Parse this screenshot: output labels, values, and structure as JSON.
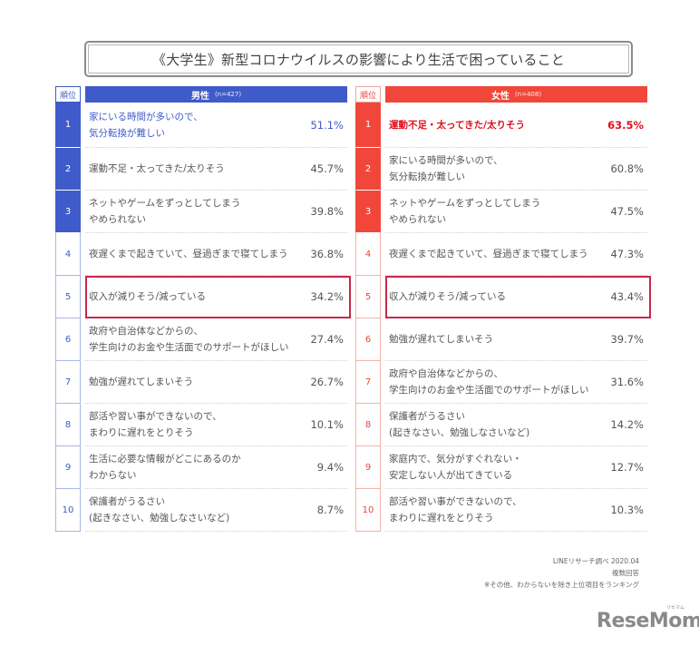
{
  "title": "《大学生》新型コロナウイルスの影響により生活で困っていること",
  "rank_header": "順位",
  "male": {
    "header": "男性",
    "n": "(n=427)",
    "color": "#3f5bc9",
    "rows": [
      {
        "rank": "1",
        "label": "家にいる時間が多いので、\n気分転換が難しい",
        "value": "51.1%"
      },
      {
        "rank": "2",
        "label": "運動不足・太ってきた/太りそう",
        "value": "45.7%"
      },
      {
        "rank": "3",
        "label": "ネットやゲームをずっとしてしまう\nやめられない",
        "value": "39.8%"
      },
      {
        "rank": "4",
        "label": "夜遅くまで起きていて、昼過ぎまで寝てしまう",
        "value": "36.8%"
      },
      {
        "rank": "5",
        "label": "収入が減りそう/減っている",
        "value": "34.2%"
      },
      {
        "rank": "6",
        "label": "政府や自治体などからの、\n学生向けのお金や生活面でのサポートがほしい",
        "value": "27.4%"
      },
      {
        "rank": "7",
        "label": "勉強が遅れてしまいそう",
        "value": "26.7%"
      },
      {
        "rank": "8",
        "label": "部活や習い事ができないので、\nまわりに遅れをとりそう",
        "value": "10.1%"
      },
      {
        "rank": "9",
        "label": "生活に必要な情報がどこにあるのか\nわからない",
        "value": "9.4%"
      },
      {
        "rank": "10",
        "label": "保護者がうるさい\n(起きなさい、勉強しなさいなど)",
        "value": "8.7%"
      }
    ]
  },
  "female": {
    "header": "女性",
    "n": "(n=408)",
    "color": "#f1473a",
    "rows": [
      {
        "rank": "1",
        "label": "運動不足・太ってきた/太りそう",
        "value": "63.5%"
      },
      {
        "rank": "2",
        "label": "家にいる時間が多いので、\n気分転換が難しい",
        "value": "60.8%"
      },
      {
        "rank": "3",
        "label": "ネットやゲームをずっとしてしまう\nやめられない",
        "value": "47.5%"
      },
      {
        "rank": "4",
        "label": "夜遅くまで起きていて、昼過ぎまで寝てしまう",
        "value": "47.3%"
      },
      {
        "rank": "5",
        "label": "収入が減りそう/減っている",
        "value": "43.4%"
      },
      {
        "rank": "6",
        "label": "勉強が遅れてしまいそう",
        "value": "39.7%"
      },
      {
        "rank": "7",
        "label": "政府や自治体などからの、\n学生向けのお金や生活面でのサポートがほしい",
        "value": "31.6%"
      },
      {
        "rank": "8",
        "label": "保護者がうるさい\n(起きなさい、勉強しなさいなど)",
        "value": "14.2%"
      },
      {
        "rank": "9",
        "label": "家庭内で、気分がすぐれない・\n安定しない人が出てきている",
        "value": "12.7%"
      },
      {
        "rank": "10",
        "label": "部活や習い事ができないので、\nまわりに遅れをとりそう",
        "value": "10.3%"
      }
    ]
  },
  "notes": {
    "source": "LINEリサーチ調べ 2020.04",
    "multiple": "複数回答",
    "remark": "※その他、わからないを除き上位項目をランキング"
  },
  "logo": {
    "text": "ReseMom",
    "sub": "リセマム"
  },
  "chart_data": {
    "type": "table",
    "title": "《大学生》新型コロナウイルスの影響により生活で困っていること",
    "columns": [
      "順位",
      "男性 (n=427)",
      "男性 %",
      "女性 (n=408)",
      "女性 %"
    ],
    "series": [
      {
        "name": "男性 (n=427)",
        "categories": [
          "家にいる時間が多いので、気分転換が難しい",
          "運動不足・太ってきた/太りそう",
          "ネットやゲームをずっとしてしまう やめられない",
          "夜遅くまで起きていて、昼過ぎまで寝てしまう",
          "収入が減りそう/減っている",
          "政府や自治体などからの、学生向けのお金や生活面でのサポートがほしい",
          "勉強が遅れてしまいそう",
          "部活や習い事ができないので、まわりに遅れをとりそう",
          "生活に必要な情報がどこにあるのかわからない",
          "保護者がうるさい (起きなさい、勉強しなさいなど)"
        ],
        "values": [
          51.1,
          45.7,
          39.8,
          36.8,
          34.2,
          27.4,
          26.7,
          10.1,
          9.4,
          8.7
        ]
      },
      {
        "name": "女性 (n=408)",
        "categories": [
          "運動不足・太ってきた/太りそう",
          "家にいる時間が多いので、気分転換が難しい",
          "ネットやゲームをずっとしてしまう やめられない",
          "夜遅くまで起きていて、昼過ぎまで寝てしまう",
          "収入が減りそう/減っている",
          "勉強が遅れてしまいそう",
          "政府や自治体などからの、学生向けのお金や生活面でのサポートがほしい",
          "保護者がうるさい (起きなさい、勉強しなさいなど)",
          "家庭内で、気分がすぐれない・安定しない人が出てきている",
          "部活や習い事ができないので、まわりに遅れをとりそう"
        ],
        "values": [
          63.5,
          60.8,
          47.5,
          47.3,
          43.4,
          39.7,
          31.6,
          14.2,
          12.7,
          10.3
        ]
      }
    ],
    "unit": "%",
    "annotations": [
      "Rank 5 (収入が減りそう/減っている) highlighted with box in both columns",
      "LINEリサーチ調べ 2020.04",
      "複数回答",
      "※その他、わからないを除き上位項目をランキング"
    ]
  }
}
